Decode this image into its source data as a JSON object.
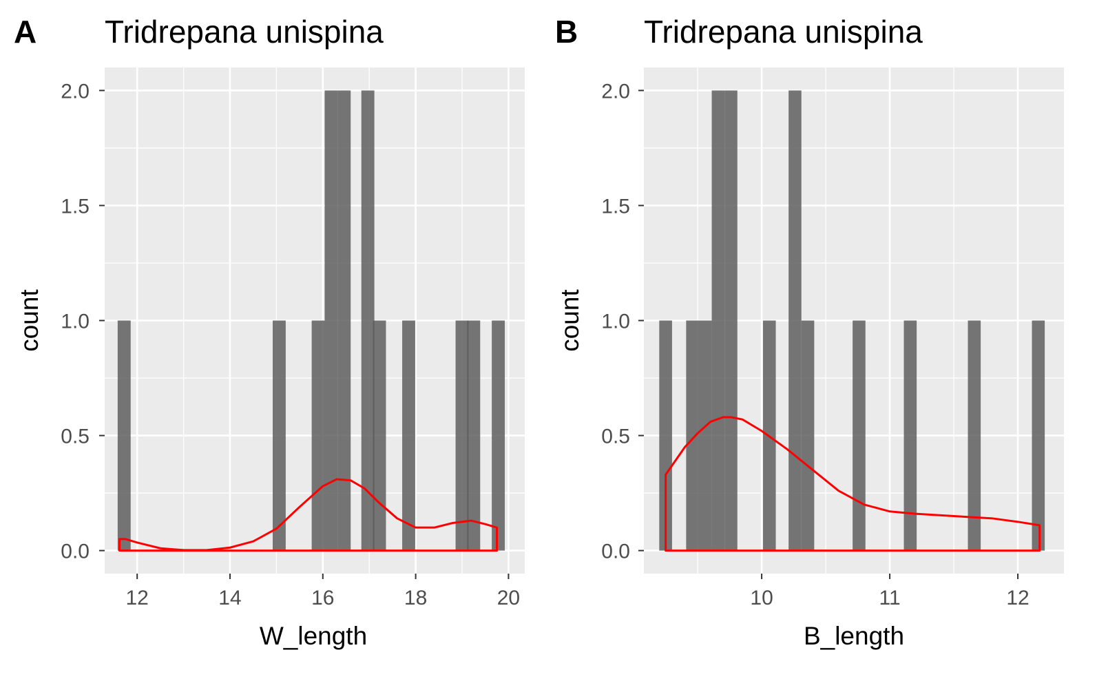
{
  "colors": {
    "panel_bg": "#ebebeb",
    "grid_major": "#ffffff",
    "bar_fill": "#595959",
    "density_line": "#ff0000",
    "tick_mark": "#333333"
  },
  "chart_data": [
    {
      "type": "bar",
      "panel_tag": "A",
      "title": "Tridrepana unispina",
      "xlabel": "W_length",
      "ylabel": "count",
      "xlim": [
        11.3,
        20.35
      ],
      "ylim": [
        -0.1,
        2.1
      ],
      "x_ticks": [
        12,
        14,
        16,
        18,
        20
      ],
      "x_tick_labels": [
        "12",
        "14",
        "16",
        "18",
        "20"
      ],
      "y_ticks": [
        0,
        0.5,
        1,
        1.5,
        2
      ],
      "y_tick_labels": [
        "0.0",
        "0.5",
        "1.0",
        "1.5",
        "2.0"
      ],
      "grid": true,
      "bin_width": 0.28,
      "bars": [
        {
          "x": 11.72,
          "count": 1
        },
        {
          "x": 15.06,
          "count": 1
        },
        {
          "x": 15.9,
          "count": 1
        },
        {
          "x": 16.18,
          "count": 2
        },
        {
          "x": 16.46,
          "count": 2
        },
        {
          "x": 16.97,
          "count": 2
        },
        {
          "x": 17.22,
          "count": 1
        },
        {
          "x": 17.85,
          "count": 1
        },
        {
          "x": 19.0,
          "count": 1
        },
        {
          "x": 19.25,
          "count": 1
        },
        {
          "x": 19.78,
          "count": 1
        }
      ],
      "density": {
        "x": [
          11.62,
          11.75,
          12.0,
          12.5,
          13.0,
          13.5,
          14.0,
          14.5,
          15.0,
          15.5,
          16.0,
          16.3,
          16.6,
          16.9,
          17.2,
          17.6,
          18.0,
          18.4,
          18.8,
          19.2,
          19.5,
          19.75
        ],
        "y": [
          0.05,
          0.05,
          0.035,
          0.01,
          0.002,
          0.002,
          0.013,
          0.04,
          0.095,
          0.19,
          0.28,
          0.31,
          0.305,
          0.27,
          0.21,
          0.14,
          0.1,
          0.1,
          0.12,
          0.13,
          0.115,
          0.1
        ]
      }
    },
    {
      "type": "bar",
      "panel_tag": "B",
      "title": "Tridrepana unispina",
      "xlabel": "B_length",
      "ylabel": "count",
      "xlim": [
        9.08,
        12.36
      ],
      "ylim": [
        -0.1,
        2.1
      ],
      "x_ticks": [
        10,
        11,
        12
      ],
      "x_tick_labels": [
        "10",
        "11",
        "12"
      ],
      "y_ticks": [
        0,
        0.5,
        1,
        1.5,
        2
      ],
      "y_tick_labels": [
        "0.0",
        "0.5",
        "1.0",
        "1.5",
        "2.0"
      ],
      "grid": true,
      "bin_width": 0.1,
      "bars": [
        {
          "x": 9.25,
          "count": 1
        },
        {
          "x": 9.46,
          "count": 1
        },
        {
          "x": 9.56,
          "count": 1
        },
        {
          "x": 9.66,
          "count": 2
        },
        {
          "x": 9.76,
          "count": 2
        },
        {
          "x": 10.06,
          "count": 1
        },
        {
          "x": 10.26,
          "count": 2
        },
        {
          "x": 10.36,
          "count": 1
        },
        {
          "x": 10.76,
          "count": 1
        },
        {
          "x": 11.16,
          "count": 1
        },
        {
          "x": 11.66,
          "count": 1
        },
        {
          "x": 12.16,
          "count": 1
        }
      ],
      "density": {
        "x": [
          9.25,
          9.3,
          9.4,
          9.5,
          9.6,
          9.7,
          9.76,
          9.85,
          10.0,
          10.2,
          10.4,
          10.6,
          10.8,
          11.0,
          11.2,
          11.5,
          11.8,
          12.0,
          12.17
        ],
        "y": [
          0.33,
          0.37,
          0.45,
          0.51,
          0.56,
          0.58,
          0.58,
          0.57,
          0.52,
          0.44,
          0.35,
          0.26,
          0.2,
          0.17,
          0.16,
          0.15,
          0.14,
          0.125,
          0.11
        ]
      }
    }
  ]
}
